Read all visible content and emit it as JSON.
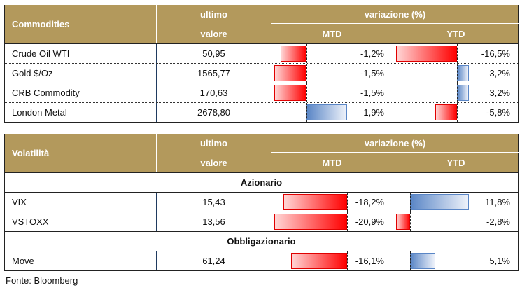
{
  "tables": [
    {
      "title": "Commodities",
      "col_value": [
        "ultimo",
        "valore"
      ],
      "col_change": "variazione (%)",
      "col_mtd": "MTD",
      "col_ytd": "YTD",
      "rows": [
        {
          "name": "Crude Oil WTI",
          "value": "50,95",
          "mtd": -1.2,
          "mtd_label": "-1,2%",
          "ytd": -16.5,
          "ytd_label": "-16,5%"
        },
        {
          "name": "Gold $/Oz",
          "value": "1565,77",
          "mtd": -1.5,
          "mtd_label": "-1,5%",
          "ytd": 3.2,
          "ytd_label": "3,2%"
        },
        {
          "name": "CRB Commodity",
          "value": "170,63",
          "mtd": -1.5,
          "mtd_label": "-1,5%",
          "ytd": 3.2,
          "ytd_label": "3,2%"
        },
        {
          "name": "London Metal",
          "value": "2678,80",
          "mtd": 1.9,
          "mtd_label": "1,9%",
          "ytd": -5.8,
          "ytd_label": "-5,8%"
        }
      ]
    },
    {
      "title": "Volatilità",
      "col_value": [
        "ultimo",
        "valore"
      ],
      "col_change": "variazione (%)",
      "col_mtd": "MTD",
      "col_ytd": "YTD",
      "rows": [
        {
          "section": "Azionario"
        },
        {
          "name": "VIX",
          "value": "15,43",
          "mtd": -18.2,
          "mtd_label": "-18,2%",
          "ytd": 11.8,
          "ytd_label": "11,8%"
        },
        {
          "name": "VSTOXX",
          "value": "13,56",
          "mtd": -20.9,
          "mtd_label": "-20,9%",
          "ytd": -2.8,
          "ytd_label": "-2,8%"
        },
        {
          "section": "Obbligazionario"
        },
        {
          "name": "Move",
          "value": "61,24",
          "mtd": -16.1,
          "mtd_label": "-16,1%",
          "ytd": 5.1,
          "ytd_label": "5,1%"
        }
      ]
    }
  ],
  "source": "Fonte: Bloomberg",
  "colors": {
    "header": "#b3995c",
    "negative": "#ff0000",
    "positive": "#5a86c6"
  }
}
